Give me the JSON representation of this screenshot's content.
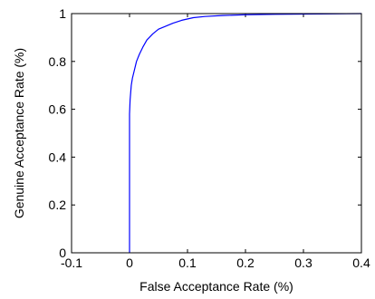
{
  "chart_data": {
    "type": "line",
    "title": "",
    "xlabel": "False Acceptance Rate (%)",
    "ylabel": "Genuine Acceptance Rate (%)",
    "xlim": [
      -0.1,
      0.4
    ],
    "ylim": [
      0,
      1
    ],
    "xticks": [
      -0.1,
      0,
      0.1,
      0.2,
      0.3,
      0.4
    ],
    "yticks": [
      0,
      0.2,
      0.4,
      0.6,
      0.8,
      1
    ],
    "xtick_labels": [
      "-0.1",
      "0",
      "0.1",
      "0.2",
      "0.3",
      "0.4"
    ],
    "ytick_labels": [
      "0",
      "0.2",
      "0.4",
      "0.6",
      "0.8",
      "1"
    ],
    "grid": false,
    "legend": "none",
    "series": [
      {
        "color": "#0000ff",
        "x": [
          0,
          0,
          0.001,
          0.003,
          0.005,
          0.008,
          0.012,
          0.017,
          0.023,
          0.03,
          0.04,
          0.05,
          0.06,
          0.075,
          0.09,
          0.11,
          0.13,
          0.16,
          0.2,
          0.25,
          0.3,
          0.35,
          0.4
        ],
        "y": [
          0,
          0.58,
          0.64,
          0.7,
          0.73,
          0.76,
          0.8,
          0.83,
          0.86,
          0.89,
          0.915,
          0.935,
          0.945,
          0.96,
          0.972,
          0.983,
          0.988,
          0.992,
          0.995,
          0.997,
          0.998,
          0.999,
          1.0
        ]
      }
    ]
  }
}
